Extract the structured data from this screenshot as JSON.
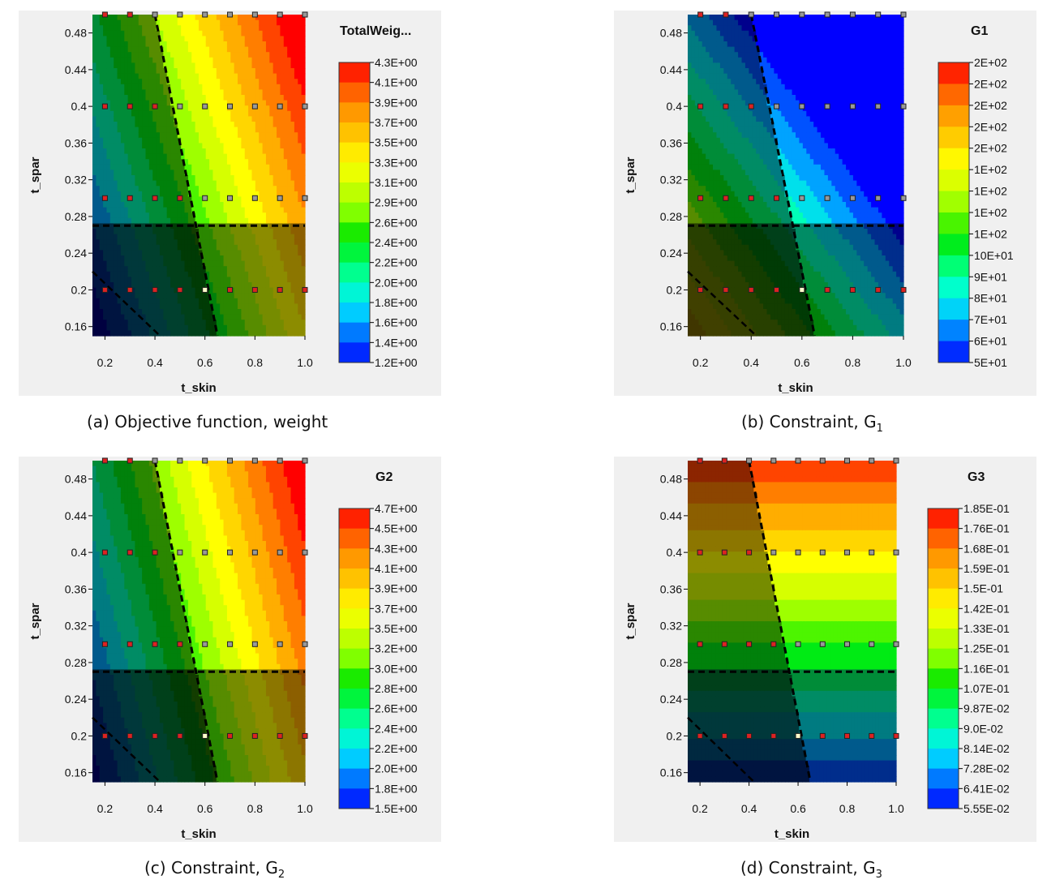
{
  "panels": [
    {
      "id": "a",
      "title": "TotalWeig...",
      "caption_prefix": "(a) Objective function, weight",
      "caption_sub": "",
      "colorbar_labels": [
        "4.3E+00",
        "4.1E+00",
        "3.9E+00",
        "3.7E+00",
        "3.5E+00",
        "3.3E+00",
        "3.1E+00",
        "2.9E+00",
        "2.6E+00",
        "2.4E+00",
        "2.2E+00",
        "2.0E+00",
        "1.8E+00",
        "1.6E+00",
        "1.4E+00",
        "1.2E+00"
      ]
    },
    {
      "id": "b",
      "title": "G1",
      "caption_prefix": "(b) Constraint, G",
      "caption_sub": "1",
      "colorbar_labels": [
        "2E+02",
        "2E+02",
        "2E+02",
        "2E+02",
        "2E+02",
        "1E+02",
        "1E+02",
        "1E+02",
        "1E+02",
        "10E+01",
        "9E+01",
        "8E+01",
        "7E+01",
        "6E+01",
        "5E+01"
      ]
    },
    {
      "id": "c",
      "title": "G2",
      "caption_prefix": "(c) Constraint, G",
      "caption_sub": "2",
      "colorbar_labels": [
        "4.7E+00",
        "4.5E+00",
        "4.3E+00",
        "4.1E+00",
        "3.9E+00",
        "3.7E+00",
        "3.5E+00",
        "3.2E+00",
        "3.0E+00",
        "2.8E+00",
        "2.6E+00",
        "2.4E+00",
        "2.2E+00",
        "2.0E+00",
        "1.8E+00",
        "1.5E+00"
      ]
    },
    {
      "id": "d",
      "title": "G3",
      "caption_prefix": "(d) Constraint, G",
      "caption_sub": "3",
      "colorbar_labels": [
        "1.85E-01",
        "1.76E-01",
        "1.68E-01",
        "1.59E-01",
        "1.5E-01",
        "1.42E-01",
        "1.33E-01",
        "1.25E-01",
        "1.16E-01",
        "1.07E-01",
        "9.87E-02",
        "9.0E-02",
        "8.14E-02",
        "7.28E-02",
        "6.41E-02",
        "5.55E-02"
      ]
    }
  ],
  "chart_data": [
    {
      "type": "heatmap",
      "title": "TotalWeig...",
      "xlabel": "t_skin",
      "ylabel": "t_spar",
      "xlim": [
        0.15,
        1.0
      ],
      "ylim": [
        0.15,
        0.5
      ],
      "x_ticks": [
        "0.2",
        "0.4",
        "0.6",
        "0.8",
        "1.0"
      ],
      "y_ticks": [
        "0.48",
        "0.44",
        "0.4",
        "0.36",
        "0.32",
        "0.28",
        "0.24",
        "0.2",
        "0.16"
      ],
      "colorbar": {
        "min": 1.2,
        "max": 4.3
      },
      "sample_points_x": [
        0.2,
        0.3,
        0.4,
        0.5,
        0.6,
        0.7,
        0.8,
        0.9,
        1.0
      ],
      "sample_points_y": [
        0.2,
        0.3,
        0.4,
        0.5
      ],
      "boundary_t_spar": 0.27
    },
    {
      "type": "heatmap",
      "title": "G1",
      "xlabel": "t_skin",
      "ylabel": "t_spar",
      "xlim": [
        0.15,
        1.0
      ],
      "ylim": [
        0.15,
        0.5
      ],
      "x_ticks": [
        "0.2",
        "0.4",
        "0.6",
        "0.8",
        "1.0"
      ],
      "y_ticks": [
        "0.48",
        "0.44",
        "0.4",
        "0.36",
        "0.32",
        "0.28",
        "0.24",
        "0.2",
        "0.16"
      ],
      "colorbar": {
        "min": 50,
        "max": 200
      },
      "sample_points_x": [
        0.2,
        0.3,
        0.4,
        0.5,
        0.6,
        0.7,
        0.8,
        0.9,
        1.0
      ],
      "sample_points_y": [
        0.2,
        0.3,
        0.4,
        0.5
      ],
      "boundary_t_spar": 0.27
    },
    {
      "type": "heatmap",
      "title": "G2",
      "xlabel": "t_skin",
      "ylabel": "t_spar",
      "xlim": [
        0.15,
        1.0
      ],
      "ylim": [
        0.15,
        0.5
      ],
      "x_ticks": [
        "0.2",
        "0.4",
        "0.6",
        "0.8",
        "1.0"
      ],
      "y_ticks": [
        "0.48",
        "0.44",
        "0.4",
        "0.36",
        "0.32",
        "0.28",
        "0.24",
        "0.2",
        "0.16"
      ],
      "colorbar": {
        "min": 1.5,
        "max": 4.7
      },
      "sample_points_x": [
        0.2,
        0.3,
        0.4,
        0.5,
        0.6,
        0.7,
        0.8,
        0.9,
        1.0
      ],
      "sample_points_y": [
        0.2,
        0.3,
        0.4,
        0.5
      ],
      "boundary_t_spar": 0.27
    },
    {
      "type": "heatmap",
      "title": "G3",
      "xlabel": "t_skin",
      "ylabel": "t_spar",
      "xlim": [
        0.15,
        1.0
      ],
      "ylim": [
        0.15,
        0.5
      ],
      "x_ticks": [
        "0.2",
        "0.4",
        "0.6",
        "0.8",
        "1.0"
      ],
      "y_ticks": [
        "0.48",
        "0.44",
        "0.4",
        "0.36",
        "0.32",
        "0.28",
        "0.24",
        "0.2",
        "0.16"
      ],
      "colorbar": {
        "min": 0.0555,
        "max": 0.185
      },
      "sample_points_x": [
        0.2,
        0.3,
        0.4,
        0.5,
        0.6,
        0.7,
        0.8,
        0.9,
        1.0
      ],
      "sample_points_y": [
        0.2,
        0.3,
        0.4,
        0.5
      ],
      "boundary_t_spar": 0.27
    }
  ]
}
